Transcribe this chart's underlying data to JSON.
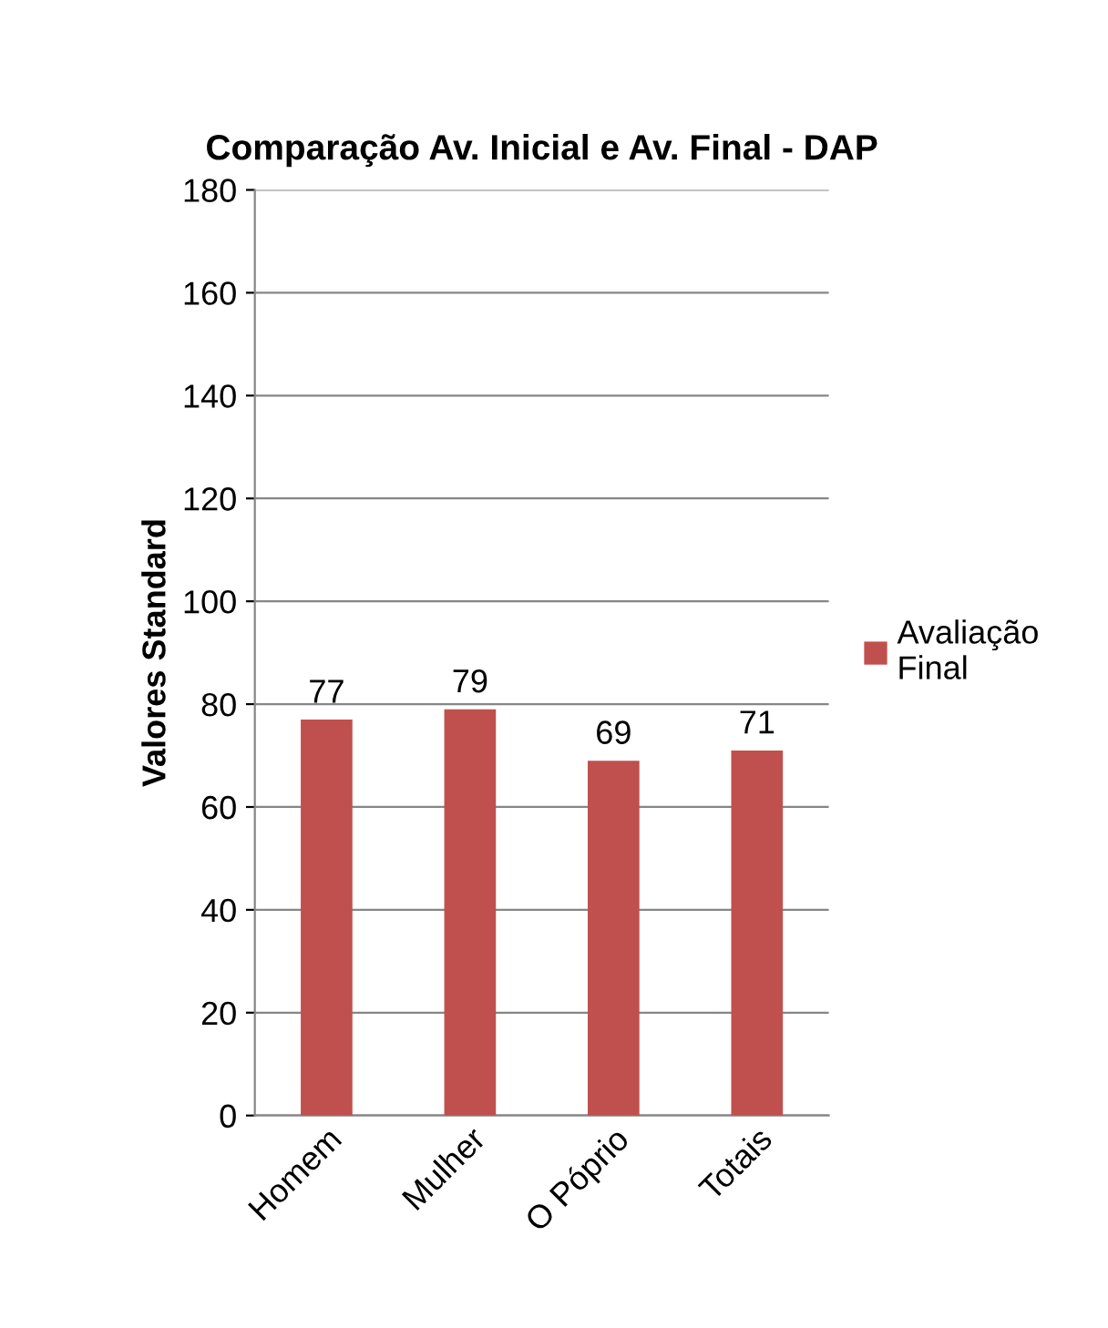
{
  "chart_data": {
    "type": "bar",
    "title": "Comparação Av. Inicial e Av. Final - DAP",
    "ylabel": "Valores Standard",
    "categories": [
      "Homem",
      "Mulher",
      "O Póprio",
      "Totais"
    ],
    "series": [
      {
        "name": "Avaliação Final",
        "color": "#c0504d",
        "values": [
          77,
          79,
          69,
          71
        ]
      }
    ],
    "ylim": [
      0,
      180
    ],
    "yticks": [
      0,
      20,
      40,
      60,
      80,
      100,
      120,
      140,
      160,
      180
    ],
    "grid": "y",
    "legend": "right",
    "data_labels": true
  }
}
